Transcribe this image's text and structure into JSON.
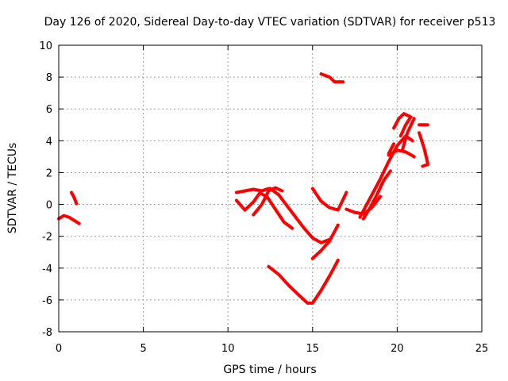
{
  "chart_data": {
    "type": "scatter",
    "title": "Day 126 of 2020, Sidereal Day-to-day VTEC variation (SDTVAR) for receiver p513",
    "xlabel": "GPS time / hours",
    "ylabel": "SDTVAR / TECUs",
    "xlim": [
      0,
      25
    ],
    "ylim": [
      -8,
      10
    ],
    "xticks": [
      "0",
      "5",
      "10",
      "15",
      "20",
      "25"
    ],
    "yticks": [
      "-8",
      "-6",
      "-4",
      "-2",
      "0",
      "2",
      "4",
      "6",
      "8",
      "10"
    ],
    "grid": true,
    "color": "#ff0000",
    "series": [
      {
        "x": [
          0.0,
          0.3,
          0.6,
          0.9,
          1.2
        ],
        "y": [
          -0.9,
          -0.7,
          -0.8,
          -1.0,
          -1.2
        ]
      },
      {
        "x": [
          0.75,
          0.9,
          1.05
        ],
        "y": [
          0.75,
          0.45,
          0.05
        ]
      },
      {
        "x": [
          10.5,
          11.0,
          11.5,
          12.0,
          12.4
        ],
        "y": [
          0.75,
          0.85,
          0.95,
          0.85,
          1.0
        ]
      },
      {
        "x": [
          10.5,
          11.0,
          11.5,
          11.9
        ],
        "y": [
          0.25,
          -0.35,
          0.15,
          0.75
        ]
      },
      {
        "x": [
          11.5,
          12.0,
          12.4,
          12.8,
          13.2
        ],
        "y": [
          -0.65,
          0.0,
          0.85,
          1.05,
          0.85
        ]
      },
      {
        "x": [
          12.5,
          13.0,
          13.5,
          14.0,
          14.5,
          15.0,
          15.5,
          16.0
        ],
        "y": [
          1.0,
          0.6,
          -0.1,
          -0.8,
          -1.5,
          -2.1,
          -2.4,
          -2.2
        ]
      },
      {
        "x": [
          11.9,
          12.3,
          12.8,
          13.3,
          13.8
        ],
        "y": [
          0.7,
          0.5,
          -0.3,
          -1.1,
          -1.5
        ]
      },
      {
        "x": [
          15.0,
          15.5,
          16.0,
          16.5,
          17.0
        ],
        "y": [
          1.0,
          0.2,
          -0.2,
          -0.35,
          0.75
        ]
      },
      {
        "x": [
          15.0,
          15.5,
          16.0,
          16.5
        ],
        "y": [
          -3.4,
          -2.9,
          -2.3,
          -1.3
        ]
      },
      {
        "x": [
          12.4,
          13.0,
          13.6,
          14.2,
          14.7,
          15.0,
          15.5,
          16.0,
          16.5
        ],
        "y": [
          -3.9,
          -4.4,
          -5.1,
          -5.7,
          -6.2,
          -6.2,
          -5.4,
          -4.5,
          -3.5
        ]
      },
      {
        "x": [
          15.5,
          16.0,
          16.3,
          16.8
        ],
        "y": [
          8.2,
          8.0,
          7.7,
          7.7
        ]
      },
      {
        "x": [
          17.0,
          17.5,
          18.0,
          18.5,
          19.0
        ],
        "y": [
          -0.3,
          -0.5,
          -0.6,
          -0.2,
          0.5
        ]
      },
      {
        "x": [
          17.8,
          18.2,
          18.6,
          19.0,
          19.5,
          20.0,
          20.5,
          20.9
        ],
        "y": [
          -0.8,
          0.0,
          0.8,
          1.6,
          2.7,
          3.7,
          4.3,
          4.0
        ]
      },
      {
        "x": [
          18.0,
          18.4,
          18.8,
          19.2,
          19.6
        ],
        "y": [
          -0.9,
          -0.2,
          0.6,
          1.5,
          2.1
        ]
      },
      {
        "x": [
          19.5,
          20.0,
          20.5,
          21.0
        ],
        "y": [
          3.1,
          3.4,
          3.3,
          3.0
        ]
      },
      {
        "x": [
          19.5,
          19.8
        ],
        "y": [
          3.2,
          3.8
        ]
      },
      {
        "x": [
          19.8,
          20.1,
          20.4,
          20.8,
          20.5,
          20.2
        ],
        "y": [
          4.8,
          5.4,
          5.7,
          5.5,
          5.0,
          4.3
        ]
      },
      {
        "x": [
          20.3,
          20.6,
          21.0
        ],
        "y": [
          3.4,
          4.5,
          5.4
        ]
      },
      {
        "x": [
          21.3,
          21.6,
          21.8
        ],
        "y": [
          4.5,
          3.5,
          2.6
        ]
      },
      {
        "x": [
          21.3,
          21.8
        ],
        "y": [
          5.0,
          5.0
        ]
      },
      {
        "x": [
          21.5,
          21.8
        ],
        "y": [
          2.4,
          2.5
        ]
      }
    ]
  }
}
